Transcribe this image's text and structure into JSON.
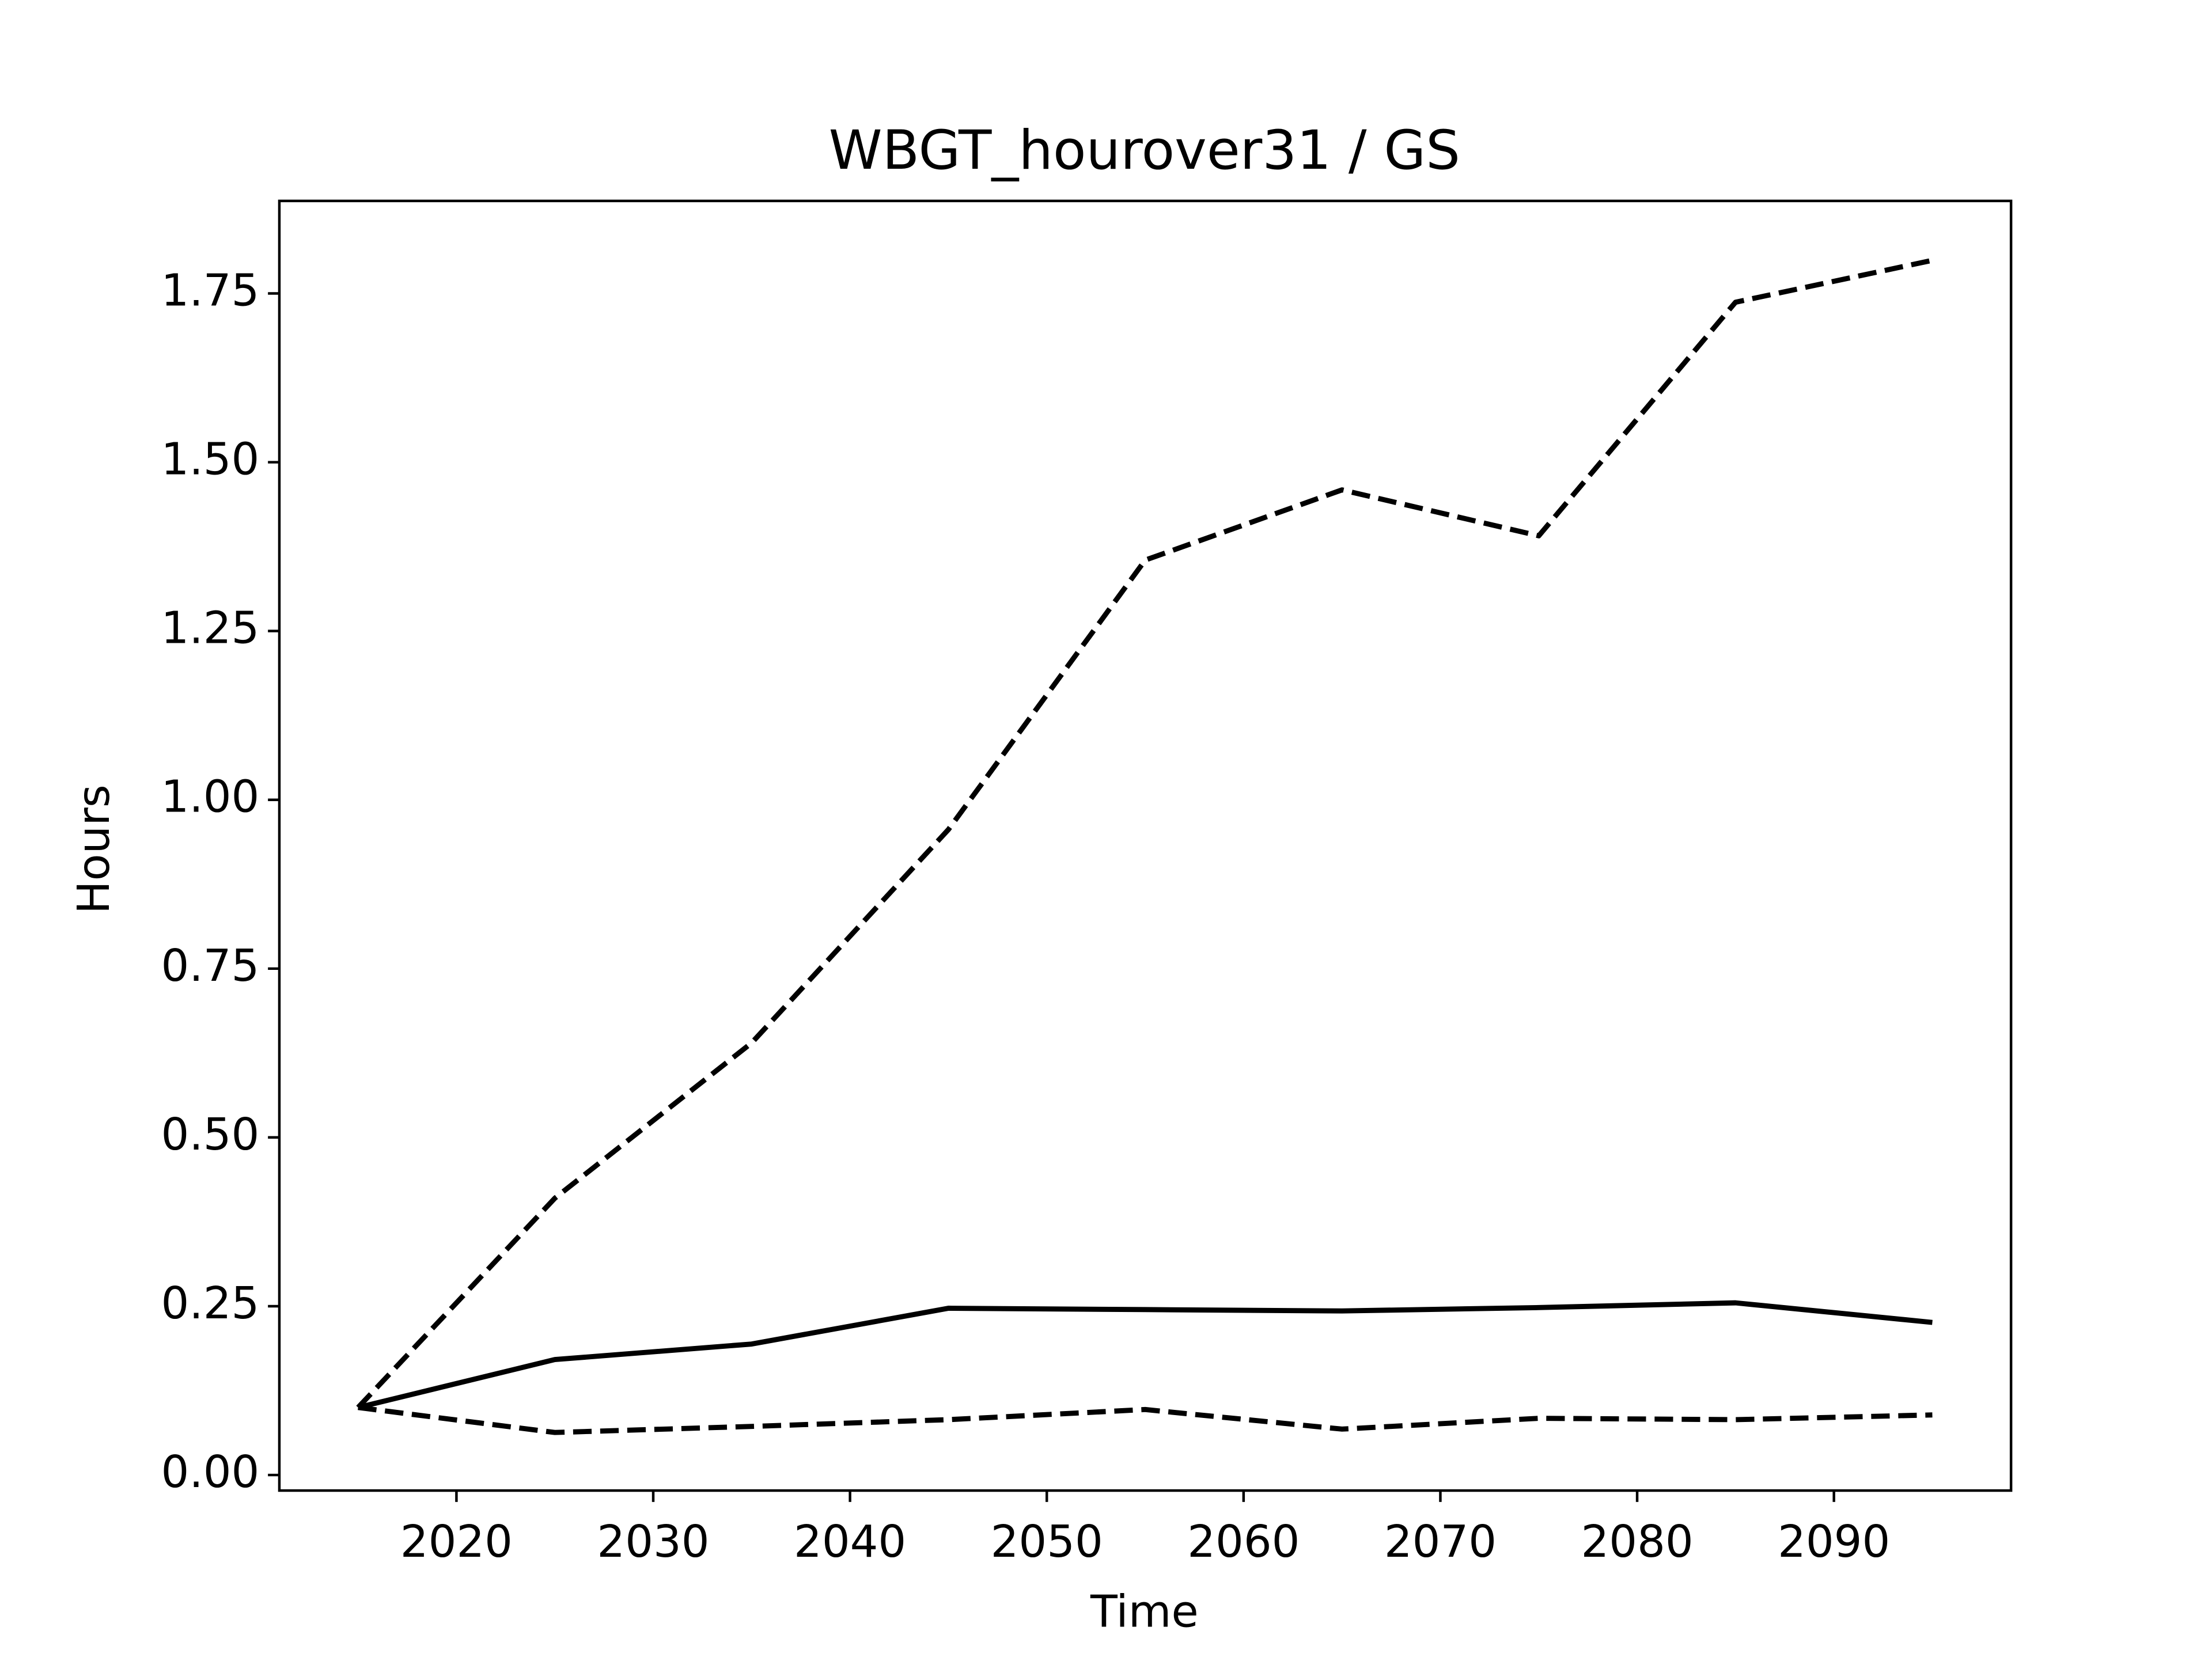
{
  "chart_data": {
    "type": "line",
    "title": "WBGT_hourover31 / GS",
    "xlabel": "Time",
    "ylabel": "Hours",
    "x": [
      2015,
      2025,
      2035,
      2045,
      2055,
      2065,
      2075,
      2085,
      2095
    ],
    "series": [
      {
        "color": "#000000",
        "linestyle": "solid",
        "values": [
          0.1,
          0.171,
          0.194,
          0.247,
          0.245,
          0.243,
          0.248,
          0.255,
          0.226
        ]
      },
      {
        "color": "#000000",
        "linestyle": "dashed",
        "values": [
          0.1,
          0.41,
          0.64,
          0.956,
          1.355,
          1.459,
          1.391,
          1.737,
          1.799
        ]
      },
      {
        "color": "#000000",
        "linestyle": "dashed",
        "values": [
          0.1,
          0.063,
          0.072,
          0.082,
          0.097,
          0.068,
          0.084,
          0.082,
          0.089
        ]
      }
    ],
    "xlim": [
      2011,
      2099
    ],
    "ylim": [
      -0.023,
      1.887
    ],
    "xticks": [
      2020,
      2030,
      2040,
      2050,
      2060,
      2070,
      2080,
      2090
    ],
    "yticks": [
      {
        "value": 0,
        "label": "0.00"
      },
      {
        "value": 0.25,
        "label": "0.25"
      },
      {
        "value": 0.5,
        "label": "0.50"
      },
      {
        "value": 0.75,
        "label": "0.75"
      },
      {
        "value": 1,
        "label": "1.00"
      },
      {
        "value": 1.25,
        "label": "1.25"
      },
      {
        "value": 1.5,
        "label": "1.50"
      },
      {
        "value": 1.75,
        "label": "1.75"
      }
    ],
    "grid": false
  }
}
